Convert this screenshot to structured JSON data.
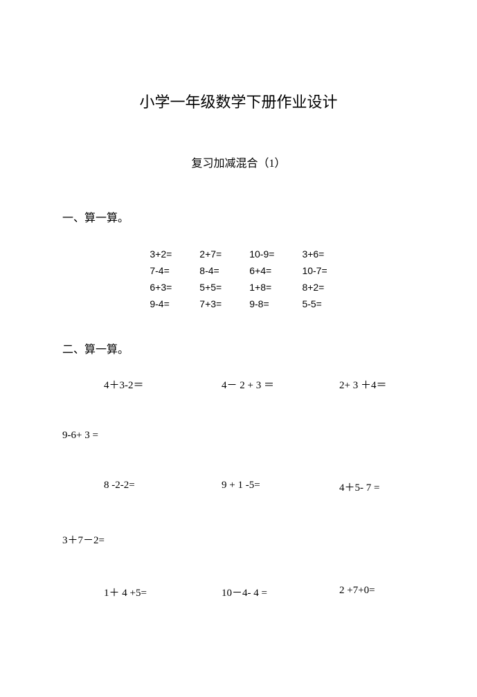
{
  "title": "小学一年级数学下册作业设计",
  "subtitle": "复习加减混合（1）",
  "section1": {
    "label": "一、算一算。",
    "grid": [
      [
        "3+2=",
        "2+7=",
        "10-9=",
        "3+6="
      ],
      [
        "7-4=",
        "8-4=",
        "6+4=",
        "10-7="
      ],
      [
        "6+3=",
        "5+5=",
        "1+8=",
        "8+2="
      ],
      [
        "9-4=",
        "7+3=",
        "9-8=",
        "5-5="
      ]
    ]
  },
  "section2": {
    "label": "二、算一算。",
    "rows": [
      {
        "type": "triple",
        "items": [
          "4＋3-2＝",
          "4－ 2 + 3 ＝",
          "2+ 3 ＋4＝"
        ]
      },
      {
        "type": "single",
        "item": "9-6+ 3 ="
      },
      {
        "type": "triple",
        "items": [
          "8 -2-2=",
          "9 + 1 -5=",
          "4＋5- 7 ="
        ]
      },
      {
        "type": "single",
        "item": "3＋7－2="
      },
      {
        "type": "triple",
        "items": [
          "1＋ 4 +5=",
          "10－4- 4 =",
          "2 +7+0="
        ]
      }
    ]
  },
  "colors": {
    "background": "#ffffff",
    "text": "#000000"
  },
  "fonts": {
    "body_family": "SimSun",
    "title_size_pt": 16,
    "body_size_pt": 12
  }
}
